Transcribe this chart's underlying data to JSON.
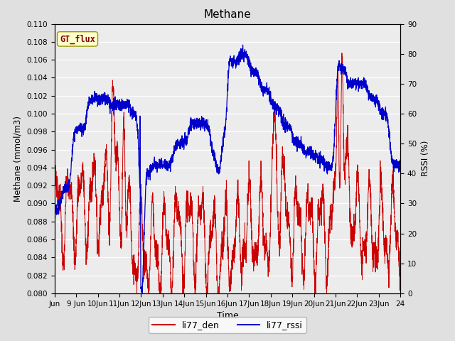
{
  "title": "Methane",
  "xlabel": "Time",
  "ylabel_left": "Methane (mmol/m3)",
  "ylabel_right": "RSSI (%)",
  "ylim_left": [
    0.08,
    0.11
  ],
  "ylim_right": [
    0,
    90
  ],
  "yticks_left": [
    0.08,
    0.082,
    0.084,
    0.086,
    0.088,
    0.09,
    0.092,
    0.094,
    0.096,
    0.098,
    0.1,
    0.102,
    0.104,
    0.106,
    0.108,
    0.11
  ],
  "yticks_right": [
    0,
    10,
    20,
    30,
    40,
    50,
    60,
    70,
    80,
    90
  ],
  "color_red": "#cc0000",
  "color_blue": "#0000cc",
  "fig_bg": "#e0e0e0",
  "plot_bg": "#ececec",
  "annotation_text": "GT_flux",
  "annotation_bg": "#ffffcc",
  "annotation_border": "#999900",
  "legend_red": "li77_den",
  "legend_blue": "li77_rssi",
  "xtick_labels": [
    "Jun",
    "9 Jun",
    "10Jun",
    "11Jun",
    "12Jun",
    "13Jun",
    "14Jun",
    "15Jun",
    "16Jun",
    "17Jun",
    "18Jun",
    "19Jun",
    "20Jun",
    "21Jun",
    "22Jun",
    "23Jun",
    "24"
  ]
}
